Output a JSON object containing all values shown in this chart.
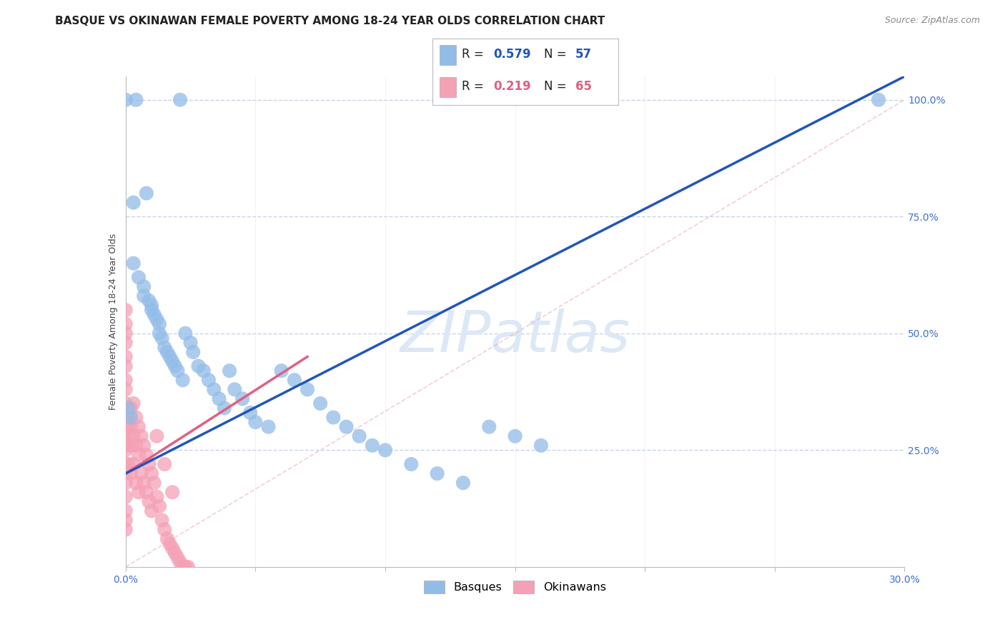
{
  "title": "BASQUE VS OKINAWAN FEMALE POVERTY AMONG 18-24 YEAR OLDS CORRELATION CHART",
  "source": "Source: ZipAtlas.com",
  "ylabel": "Female Poverty Among 18-24 Year Olds",
  "xlim": [
    0.0,
    0.3
  ],
  "ylim": [
    0.0,
    1.05
  ],
  "basque_color": "#92bce8",
  "okinawan_color": "#f5a0b5",
  "blue_line_color": "#2255bb",
  "pink_line_color": "#e06080",
  "ref_line_color": "#e8b0c0",
  "grid_color": "#c8d4e8",
  "watermark_color": "#dce8f5",
  "title_fontsize": 11,
  "axis_label_fontsize": 9,
  "tick_fontsize": 10,
  "watermark_fontsize": 58,
  "source_fontsize": 9,
  "basque_x": [
    0.004,
    0.021,
    0.0,
    0.003,
    0.003,
    0.005,
    0.007,
    0.007,
    0.008,
    0.009,
    0.01,
    0.01,
    0.011,
    0.012,
    0.013,
    0.013,
    0.014,
    0.015,
    0.016,
    0.017,
    0.018,
    0.019,
    0.02,
    0.022,
    0.023,
    0.025,
    0.026,
    0.028,
    0.03,
    0.032,
    0.034,
    0.036,
    0.038,
    0.04,
    0.042,
    0.045,
    0.048,
    0.05,
    0.055,
    0.06,
    0.065,
    0.07,
    0.075,
    0.08,
    0.085,
    0.09,
    0.095,
    0.1,
    0.11,
    0.12,
    0.13,
    0.14,
    0.15,
    0.16,
    0.001,
    0.002,
    0.29
  ],
  "basque_y": [
    1.0,
    1.0,
    1.0,
    0.78,
    0.65,
    0.62,
    0.6,
    0.58,
    0.8,
    0.57,
    0.56,
    0.55,
    0.54,
    0.53,
    0.52,
    0.5,
    0.49,
    0.47,
    0.46,
    0.45,
    0.44,
    0.43,
    0.42,
    0.4,
    0.5,
    0.48,
    0.46,
    0.43,
    0.42,
    0.4,
    0.38,
    0.36,
    0.34,
    0.42,
    0.38,
    0.36,
    0.33,
    0.31,
    0.3,
    0.42,
    0.4,
    0.38,
    0.35,
    0.32,
    0.3,
    0.28,
    0.26,
    0.25,
    0.22,
    0.2,
    0.18,
    0.3,
    0.28,
    0.26,
    0.34,
    0.32,
    1.0
  ],
  "okinawan_x": [
    0.0,
    0.0,
    0.0,
    0.0,
    0.0,
    0.0,
    0.0,
    0.0,
    0.0,
    0.0,
    0.0,
    0.0,
    0.0,
    0.0,
    0.0,
    0.0,
    0.0,
    0.0,
    0.0,
    0.0,
    0.001,
    0.001,
    0.001,
    0.001,
    0.001,
    0.002,
    0.002,
    0.002,
    0.002,
    0.003,
    0.003,
    0.003,
    0.004,
    0.004,
    0.004,
    0.005,
    0.005,
    0.005,
    0.006,
    0.006,
    0.007,
    0.007,
    0.008,
    0.008,
    0.009,
    0.009,
    0.01,
    0.01,
    0.011,
    0.012,
    0.013,
    0.014,
    0.015,
    0.016,
    0.017,
    0.018,
    0.019,
    0.02,
    0.021,
    0.022,
    0.023,
    0.024,
    0.012,
    0.015,
    0.018
  ],
  "okinawan_y": [
    0.55,
    0.52,
    0.5,
    0.48,
    0.45,
    0.43,
    0.4,
    0.38,
    0.35,
    0.32,
    0.3,
    0.27,
    0.25,
    0.22,
    0.2,
    0.18,
    0.15,
    0.12,
    0.1,
    0.08,
    0.32,
    0.3,
    0.28,
    0.26,
    0.22,
    0.34,
    0.3,
    0.26,
    0.2,
    0.35,
    0.28,
    0.22,
    0.32,
    0.26,
    0.18,
    0.3,
    0.24,
    0.16,
    0.28,
    0.2,
    0.26,
    0.18,
    0.24,
    0.16,
    0.22,
    0.14,
    0.2,
    0.12,
    0.18,
    0.15,
    0.13,
    0.1,
    0.08,
    0.06,
    0.05,
    0.04,
    0.03,
    0.02,
    0.01,
    0.0,
    0.0,
    0.0,
    0.28,
    0.22,
    0.16
  ]
}
